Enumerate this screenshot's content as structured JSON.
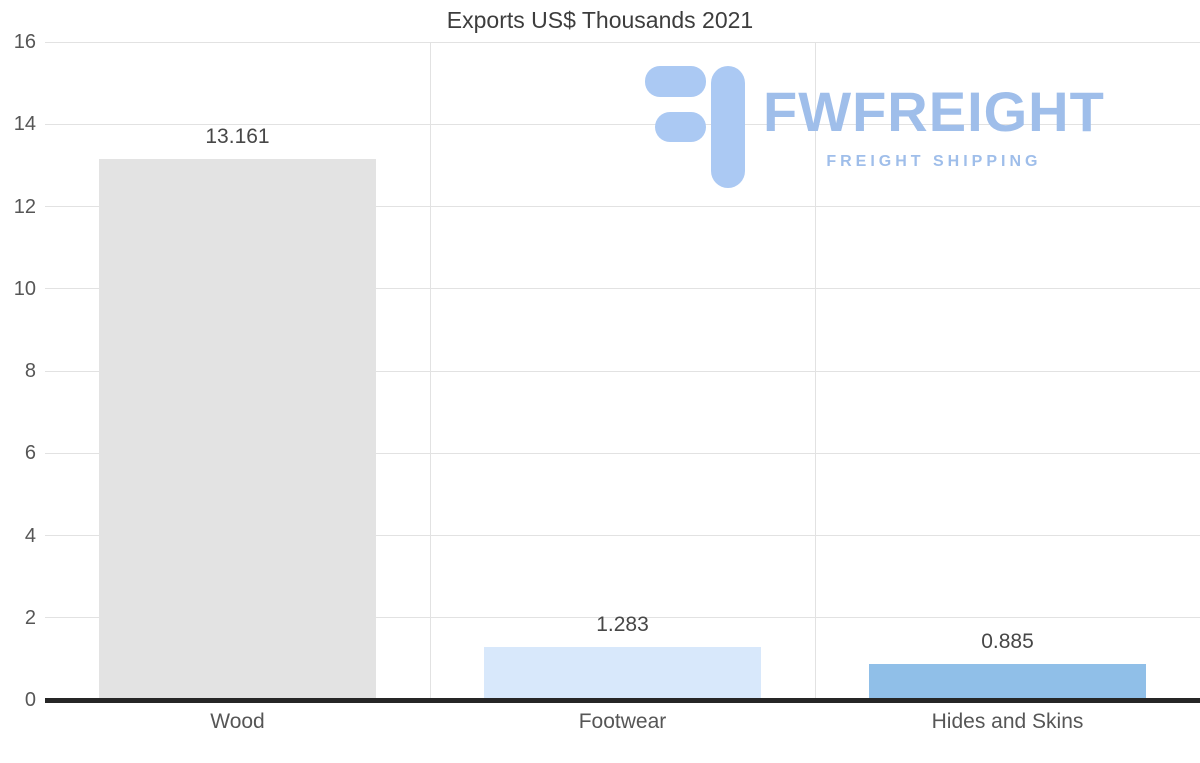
{
  "title": "Exports US$ Thousands 2021",
  "watermark": {
    "brand": "FWFREIGHT",
    "tagline": "FREIGHT SHIPPING",
    "icon": "fwfreight-logo-icon",
    "text_color": "#9fbeea",
    "icon_color": "#abc9f3"
  },
  "chart_data": {
    "type": "bar",
    "title": "Exports US$ Thousands 2021",
    "categories": [
      "Wood",
      "Footwear",
      "Hides and Skins"
    ],
    "values": [
      13.161,
      1.283,
      0.885
    ],
    "value_labels": [
      "13.161",
      "1.283",
      "0.885"
    ],
    "bar_colors": [
      "#e3e3e3",
      "#d8e8fb",
      "#90bfe8"
    ],
    "xlabel": "",
    "ylabel": "",
    "ylim": [
      0,
      16
    ],
    "yticks": [
      0,
      2,
      4,
      6,
      8,
      10,
      12,
      14,
      16
    ],
    "grid": true,
    "legend": false,
    "gridline_color": "#e2e2e2",
    "axis_color": "#262626",
    "label_color": "#565656"
  }
}
